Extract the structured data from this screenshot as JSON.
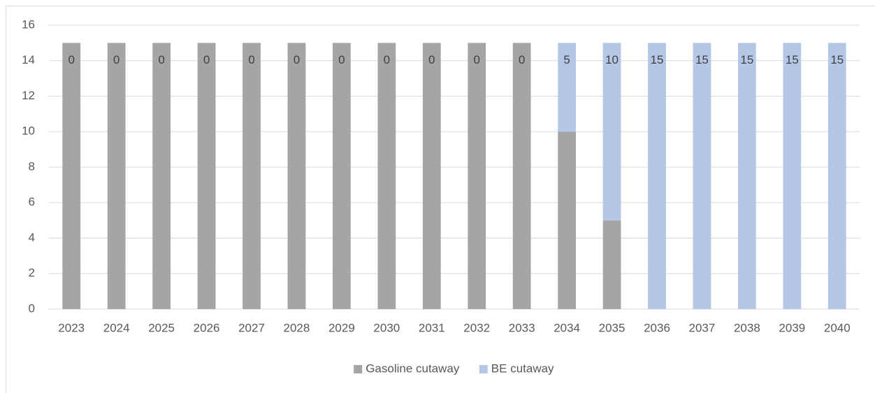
{
  "chart_data": {
    "type": "stacked_bar",
    "categories": [
      "2023",
      "2024",
      "2025",
      "2026",
      "2027",
      "2028",
      "2029",
      "2030",
      "2031",
      "2032",
      "2033",
      "2034",
      "2035",
      "2036",
      "2037",
      "2038",
      "2039",
      "2040"
    ],
    "series": [
      {
        "name": "Gasoline cutaway",
        "color": "#a5a5a5",
        "values": [
          15,
          15,
          15,
          15,
          15,
          15,
          15,
          15,
          15,
          15,
          15,
          10,
          5,
          0,
          0,
          0,
          0,
          0
        ]
      },
      {
        "name": "BE cutaway",
        "color": "#b4c7e7",
        "values": [
          0,
          0,
          0,
          0,
          0,
          0,
          0,
          0,
          0,
          0,
          0,
          5,
          10,
          15,
          15,
          15,
          15,
          15
        ],
        "data_labels": true
      }
    ],
    "ylim": [
      0,
      16
    ],
    "yticks": [
      0,
      2,
      4,
      6,
      8,
      10,
      12,
      14,
      16
    ],
    "grid": true,
    "legend": "bottom"
  }
}
